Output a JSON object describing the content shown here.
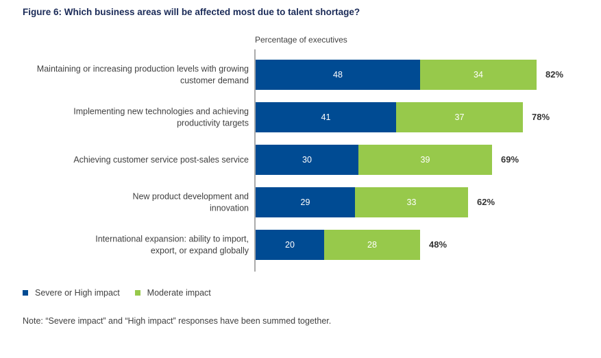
{
  "title": "Figure 6: Which business areas will be affected most due to talent shortage?",
  "note": "Note: “Severe impact” and “High impact” responses have been summed together.",
  "colors": {
    "severe": "#004b93",
    "moderate": "#97c94b"
  },
  "chart_data": {
    "type": "bar",
    "orientation": "horizontal",
    "stacked": true,
    "axis_title": "Percentage of executives",
    "categories": [
      [
        "Maintaining or increasing production levels with growing",
        "customer demand"
      ],
      [
        "Implementing new technologies and achieving",
        "productivity targets"
      ],
      [
        "Achieving customer service post-sales service"
      ],
      [
        "New product development and",
        "innovation"
      ],
      [
        "International expansion: ability to import,",
        "export, or expand globally"
      ]
    ],
    "series": [
      {
        "name": "Severe or High impact",
        "values": [
          48,
          41,
          30,
          29,
          20
        ]
      },
      {
        "name": "Moderate impact",
        "values": [
          34,
          37,
          39,
          33,
          28
        ]
      }
    ],
    "totals": [
      "82%",
      "78%",
      "69%",
      "62%",
      "48%"
    ],
    "legend_position": "bottom-left",
    "grid": false
  }
}
